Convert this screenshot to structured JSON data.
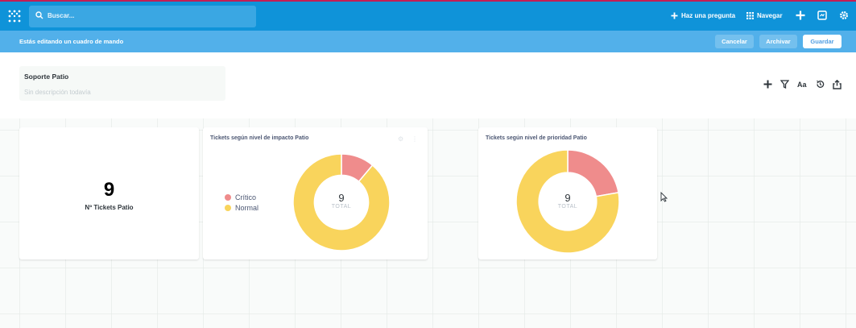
{
  "topbar": {
    "search_placeholder": "Buscar...",
    "ask_question": "Haz una pregunta",
    "browse": "Navegar"
  },
  "edit_bar": {
    "message": "Estás editando un cuadro de mando",
    "cancel": "Cancelar",
    "archive": "Archivar",
    "save": "Guardar"
  },
  "dashboard": {
    "title": "Soporte Patio",
    "description_placeholder": "Sin descripción todavía",
    "header_tools": {
      "text_label": "Aa"
    }
  },
  "cards": {
    "scalar": {
      "value": "9",
      "label": "Nº Tickets Patio"
    },
    "impact": {
      "title": "Tickets según nivel de impacto Patio",
      "total": "9",
      "total_label": "TOTAL",
      "legend": [
        {
          "label": "Crítico",
          "color": "#ef8c8c"
        },
        {
          "label": "Normal",
          "color": "#f9d45c"
        }
      ]
    },
    "priority": {
      "title": "Tickets según nivel de prioridad Patio",
      "total": "9",
      "total_label": "TOTAL"
    }
  },
  "chart_data": [
    {
      "type": "pie",
      "title": "Tickets según nivel de impacto Patio",
      "categories": [
        "Crítico",
        "Normal"
      ],
      "values": [
        1,
        8
      ],
      "colors": [
        "#ef8c8c",
        "#f9d45c"
      ],
      "total": 9
    },
    {
      "type": "pie",
      "title": "Tickets según nivel de prioridad Patio",
      "categories": [
        "",
        ""
      ],
      "values": [
        2,
        7
      ],
      "colors": [
        "#ef8c8c",
        "#f9d45c"
      ],
      "total": 9
    }
  ],
  "colors": {
    "brand": "#0f93d9",
    "edit_bar": "#52b0ea",
    "critical": "#ef8c8c",
    "normal": "#f9d45c"
  }
}
